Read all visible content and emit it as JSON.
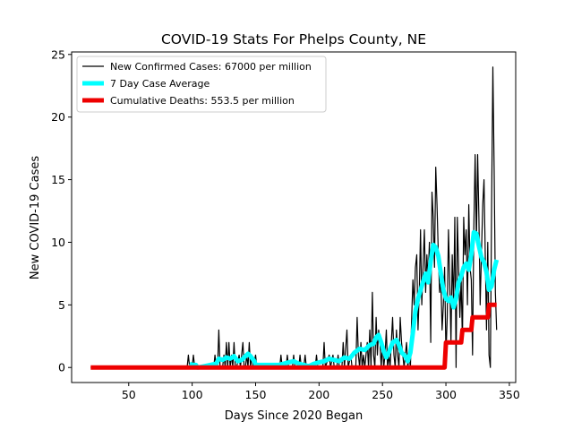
{
  "chart_data": {
    "type": "line",
    "title": "COVID-19 Stats For Phelps County, NE",
    "xlabel": "Days Since 2020 Began",
    "ylabel": "New COVID-19 Cases",
    "xlim": [
      5,
      355
    ],
    "ylim": [
      -1.2,
      25.2
    ],
    "x_ticks": [
      50,
      100,
      150,
      200,
      250,
      300,
      350
    ],
    "y_ticks": [
      0,
      5,
      10,
      15,
      20,
      25
    ],
    "grid": false,
    "legend_position": "top-left",
    "series": [
      {
        "name": "New Confirmed Cases: 67000 per million",
        "color": "#000000",
        "points": [
          [
            20,
            0
          ],
          [
            96,
            0
          ],
          [
            97,
            1
          ],
          [
            98,
            0
          ],
          [
            100,
            0
          ],
          [
            101,
            1
          ],
          [
            102,
            0
          ],
          [
            103,
            0
          ],
          [
            117,
            0
          ],
          [
            118,
            1
          ],
          [
            119,
            0
          ],
          [
            120,
            0
          ],
          [
            121,
            3
          ],
          [
            122,
            0
          ],
          [
            124,
            0
          ],
          [
            125,
            1
          ],
          [
            126,
            0
          ],
          [
            127,
            2
          ],
          [
            128,
            0
          ],
          [
            129,
            2
          ],
          [
            130,
            0
          ],
          [
            131,
            1
          ],
          [
            132,
            0
          ],
          [
            133,
            2
          ],
          [
            134,
            0
          ],
          [
            135,
            0
          ],
          [
            137,
            1
          ],
          [
            138,
            0
          ],
          [
            140,
            2
          ],
          [
            141,
            0
          ],
          [
            142,
            0
          ],
          [
            143,
            1
          ],
          [
            144,
            0
          ],
          [
            145,
            2
          ],
          [
            146,
            0
          ],
          [
            147,
            1
          ],
          [
            148,
            0
          ],
          [
            150,
            1
          ],
          [
            151,
            0
          ],
          [
            169,
            0
          ],
          [
            170,
            1
          ],
          [
            171,
            0
          ],
          [
            174,
            0
          ],
          [
            175,
            1
          ],
          [
            176,
            0
          ],
          [
            179,
            0
          ],
          [
            180,
            1
          ],
          [
            181,
            0
          ],
          [
            184,
            0
          ],
          [
            185,
            1
          ],
          [
            186,
            0
          ],
          [
            188,
            0
          ],
          [
            189,
            1
          ],
          [
            190,
            0
          ],
          [
            197,
            0
          ],
          [
            198,
            1
          ],
          [
            199,
            0
          ],
          [
            203,
            0
          ],
          [
            204,
            2
          ],
          [
            205,
            0
          ],
          [
            208,
            1
          ],
          [
            209,
            0
          ],
          [
            211,
            1
          ],
          [
            212,
            0
          ],
          [
            214,
            0
          ],
          [
            215,
            1
          ],
          [
            216,
            0
          ],
          [
            218,
            0
          ],
          [
            219,
            2
          ],
          [
            220,
            0
          ],
          [
            222,
            3
          ],
          [
            223,
            0
          ],
          [
            225,
            1
          ],
          [
            226,
            0
          ],
          [
            229,
            0
          ],
          [
            230,
            4
          ],
          [
            231,
            1
          ],
          [
            232,
            0
          ],
          [
            233,
            2
          ],
          [
            234,
            0
          ],
          [
            235,
            1
          ],
          [
            236,
            0
          ],
          [
            238,
            2
          ],
          [
            239,
            0
          ],
          [
            240,
            3
          ],
          [
            241,
            0
          ],
          [
            242,
            6
          ],
          [
            243,
            1
          ],
          [
            244,
            0
          ],
          [
            245,
            4
          ],
          [
            246,
            1
          ],
          [
            247,
            3
          ],
          [
            248,
            2
          ],
          [
            249,
            0
          ],
          [
            250,
            2
          ],
          [
            251,
            0
          ],
          [
            252,
            1
          ],
          [
            253,
            3
          ],
          [
            254,
            0
          ],
          [
            255,
            1
          ],
          [
            256,
            0
          ],
          [
            257,
            2
          ],
          [
            258,
            4
          ],
          [
            259,
            1
          ],
          [
            260,
            0
          ],
          [
            261,
            3
          ],
          [
            262,
            1
          ],
          [
            263,
            0
          ],
          [
            264,
            4
          ],
          [
            265,
            2
          ],
          [
            266,
            1
          ],
          [
            267,
            0
          ],
          [
            268,
            1
          ],
          [
            269,
            2
          ],
          [
            270,
            0
          ],
          [
            271,
            1
          ],
          [
            272,
            0
          ],
          [
            273,
            4
          ],
          [
            274,
            7
          ],
          [
            275,
            5
          ],
          [
            276,
            8
          ],
          [
            277,
            9
          ],
          [
            278,
            3
          ],
          [
            279,
            6
          ],
          [
            280,
            11
          ],
          [
            281,
            5
          ],
          [
            282,
            8
          ],
          [
            283,
            11
          ],
          [
            284,
            6
          ],
          [
            285,
            9
          ],
          [
            286,
            7
          ],
          [
            287,
            10
          ],
          [
            288,
            2
          ],
          [
            289,
            14
          ],
          [
            290,
            12
          ],
          [
            291,
            8
          ],
          [
            292,
            16
          ],
          [
            293,
            13
          ],
          [
            294,
            9
          ],
          [
            295,
            6
          ],
          [
            296,
            7
          ],
          [
            297,
            3
          ],
          [
            298,
            5
          ],
          [
            299,
            8
          ],
          [
            300,
            1
          ],
          [
            301,
            4
          ],
          [
            302,
            11
          ],
          [
            303,
            7
          ],
          [
            304,
            2
          ],
          [
            305,
            9
          ],
          [
            306,
            5
          ],
          [
            307,
            12
          ],
          [
            308,
            0
          ],
          [
            309,
            12
          ],
          [
            310,
            8
          ],
          [
            311,
            4
          ],
          [
            312,
            7
          ],
          [
            313,
            2
          ],
          [
            314,
            12
          ],
          [
            315,
            9
          ],
          [
            316,
            11
          ],
          [
            317,
            5
          ],
          [
            318,
            13
          ],
          [
            319,
            8
          ],
          [
            320,
            7
          ],
          [
            321,
            1
          ],
          [
            322,
            11
          ],
          [
            323,
            17
          ],
          [
            324,
            10
          ],
          [
            325,
            17
          ],
          [
            326,
            12
          ],
          [
            327,
            5
          ],
          [
            328,
            9
          ],
          [
            329,
            13
          ],
          [
            330,
            15
          ],
          [
            331,
            9
          ],
          [
            332,
            3
          ],
          [
            333,
            10
          ],
          [
            334,
            1
          ],
          [
            335,
            0
          ],
          [
            336,
            13
          ],
          [
            337,
            24
          ],
          [
            338,
            16
          ],
          [
            339,
            6
          ],
          [
            340,
            3
          ]
        ]
      },
      {
        "name": "7 Day Case Average",
        "color": "#00ffff",
        "points": [
          [
            98,
            0.3
          ],
          [
            100,
            0.2
          ],
          [
            103,
            0.2
          ],
          [
            104,
            0
          ],
          [
            105,
            0
          ],
          [
            119,
            0.3
          ],
          [
            121,
            0.7
          ],
          [
            124,
            0.6
          ],
          [
            127,
            0.8
          ],
          [
            130,
            0.7
          ],
          [
            133,
            0.9
          ],
          [
            136,
            0.5
          ],
          [
            139,
            0.6
          ],
          [
            142,
            0.9
          ],
          [
            144,
            1.1
          ],
          [
            146,
            0.9
          ],
          [
            149,
            0.5
          ],
          [
            150,
            0.2
          ],
          [
            168,
            0.2
          ],
          [
            172,
            0.3
          ],
          [
            176,
            0.4
          ],
          [
            180,
            0.5
          ],
          [
            184,
            0.3
          ],
          [
            188,
            0.2
          ],
          [
            192,
            0.1
          ],
          [
            196,
            0.3
          ],
          [
            200,
            0.4
          ],
          [
            204,
            0.5
          ],
          [
            208,
            0.7
          ],
          [
            212,
            0.6
          ],
          [
            216,
            0.5
          ],
          [
            220,
            0.8
          ],
          [
            224,
            0.7
          ],
          [
            228,
            1.2
          ],
          [
            232,
            1.5
          ],
          [
            236,
            1.4
          ],
          [
            240,
            1.8
          ],
          [
            243,
            1.9
          ],
          [
            245,
            2.4
          ],
          [
            247,
            2.6
          ],
          [
            249,
            2.0
          ],
          [
            251,
            1.3
          ],
          [
            253,
            0.8
          ],
          [
            255,
            1.2
          ],
          [
            258,
            2.0
          ],
          [
            261,
            2.2
          ],
          [
            263,
            1.8
          ],
          [
            265,
            1.2
          ],
          [
            268,
            0.9
          ],
          [
            270,
            0.5
          ],
          [
            272,
            1.2
          ],
          [
            274,
            2.8
          ],
          [
            276,
            4.5
          ],
          [
            278,
            5.5
          ],
          [
            281,
            6.5
          ],
          [
            284,
            7.5
          ],
          [
            286,
            6.8
          ],
          [
            288,
            8.5
          ],
          [
            290,
            9.8
          ],
          [
            292,
            9.6
          ],
          [
            294,
            8.9
          ],
          [
            296,
            7.5
          ],
          [
            298,
            6.2
          ],
          [
            300,
            5.5
          ],
          [
            302,
            5.3
          ],
          [
            304,
            5.6
          ],
          [
            306,
            4.8
          ],
          [
            308,
            5.5
          ],
          [
            310,
            6.8
          ],
          [
            312,
            7.3
          ],
          [
            314,
            8.0
          ],
          [
            316,
            8.3
          ],
          [
            318,
            7.8
          ],
          [
            320,
            9.0
          ],
          [
            322,
            10.8
          ],
          [
            324,
            10.7
          ],
          [
            326,
            9.7
          ],
          [
            328,
            8.8
          ],
          [
            330,
            8.4
          ],
          [
            332,
            7.6
          ],
          [
            334,
            6.2
          ],
          [
            336,
            6.5
          ],
          [
            338,
            7.8
          ],
          [
            340,
            8.6
          ]
        ]
      },
      {
        "name": "Cumulative Deaths: 553.5 per million",
        "color": "#ee0000",
        "points": [
          [
            20,
            0
          ],
          [
            299,
            0
          ],
          [
            300,
            2
          ],
          [
            312,
            2
          ],
          [
            313,
            3
          ],
          [
            320,
            3
          ],
          [
            321,
            4
          ],
          [
            333,
            4
          ],
          [
            334,
            5
          ],
          [
            340,
            5
          ]
        ]
      }
    ]
  }
}
